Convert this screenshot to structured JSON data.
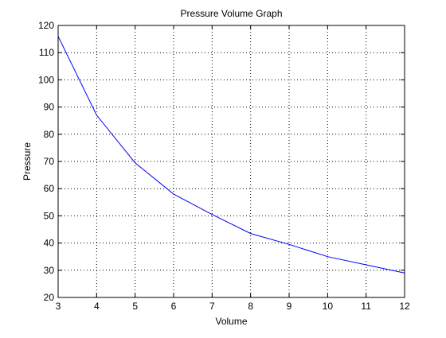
{
  "chart_data": {
    "type": "line",
    "title": "Pressure Volume Graph",
    "xlabel": "Volume",
    "ylabel": "Pressure",
    "xlim": [
      3,
      12
    ],
    "ylim": [
      20,
      120
    ],
    "xticks": [
      3,
      4,
      5,
      6,
      7,
      8,
      9,
      10,
      11,
      12
    ],
    "yticks": [
      20,
      30,
      40,
      50,
      60,
      70,
      80,
      90,
      100,
      110,
      120
    ],
    "grid": true,
    "grid_style": "dotted",
    "series": [
      {
        "color": "#0000ff",
        "x": [
          3,
          4,
          5,
          6,
          7,
          8,
          9,
          10,
          11,
          12
        ],
        "y": [
          116,
          87,
          69.5,
          58,
          50.5,
          43.5,
          39.5,
          35,
          32,
          29
        ]
      }
    ]
  }
}
